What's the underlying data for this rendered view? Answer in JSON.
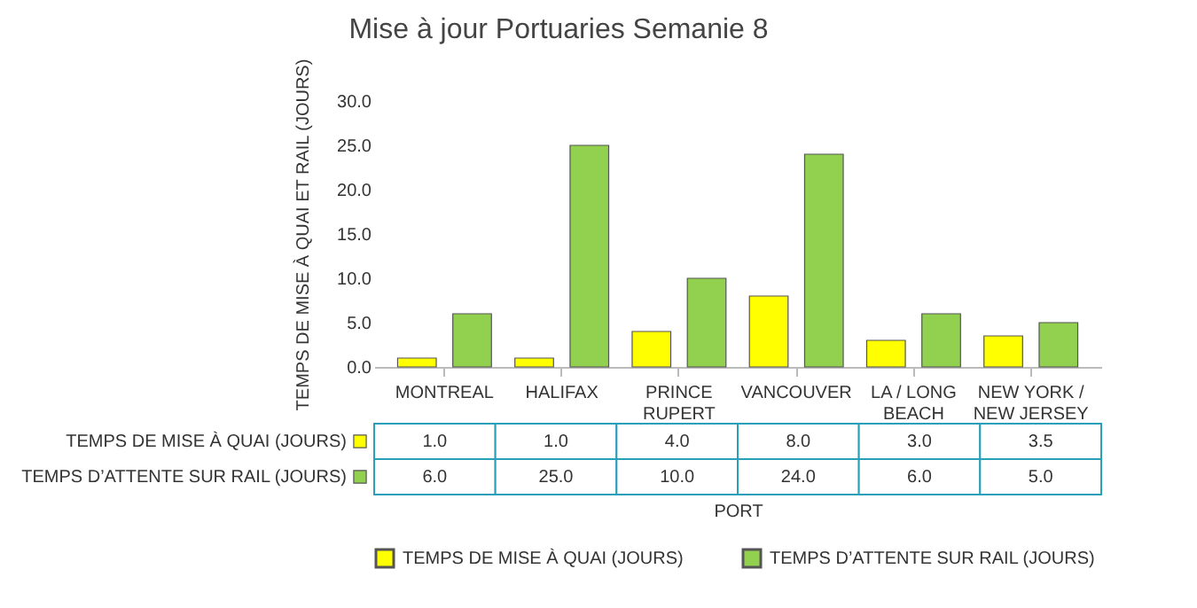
{
  "chart_data": {
    "type": "bar",
    "title": "Mise à jour Portuaries Semanie 8",
    "xlabel": "PORT",
    "ylabel": "TEMPS DE MISE À QUAI ET RAIL (JOURS)",
    "categories": [
      "MONTREAL",
      "HALIFAX",
      "PRINCE RUPERT",
      "VANCOUVER",
      "LA / LONG BEACH",
      "NEW YORK / NEW JERSEY"
    ],
    "series": [
      {
        "name": "TEMPS DE MISE À QUAI (JOURS)",
        "color": "#ffff00",
        "values": [
          1.0,
          1.0,
          4.0,
          8.0,
          3.0,
          3.5
        ],
        "value_labels": [
          "1.0",
          "1.0",
          "4.0",
          "8.0",
          "3.0",
          "3.5"
        ]
      },
      {
        "name": "TEMPS  D’ATTENTE SUR RAIL (JOURS)",
        "color": "#92d050",
        "values": [
          6.0,
          25.0,
          10.0,
          24.0,
          6.0,
          5.0
        ],
        "value_labels": [
          "6.0",
          "25.0",
          "10.0",
          "24.0",
          "6.0",
          "5.0"
        ]
      }
    ],
    "ylim": [
      0,
      30
    ],
    "yticks": [
      {
        "value": 0,
        "label": "0.0"
      },
      {
        "value": 5,
        "label": "5.0"
      },
      {
        "value": 10,
        "label": "10.0"
      },
      {
        "value": 15,
        "label": "15.0"
      },
      {
        "value": 20,
        "label": "20.0"
      },
      {
        "value": 25,
        "label": "25.0"
      },
      {
        "value": 30,
        "label": "30.0"
      }
    ],
    "grid": false,
    "legend": "bottom"
  }
}
